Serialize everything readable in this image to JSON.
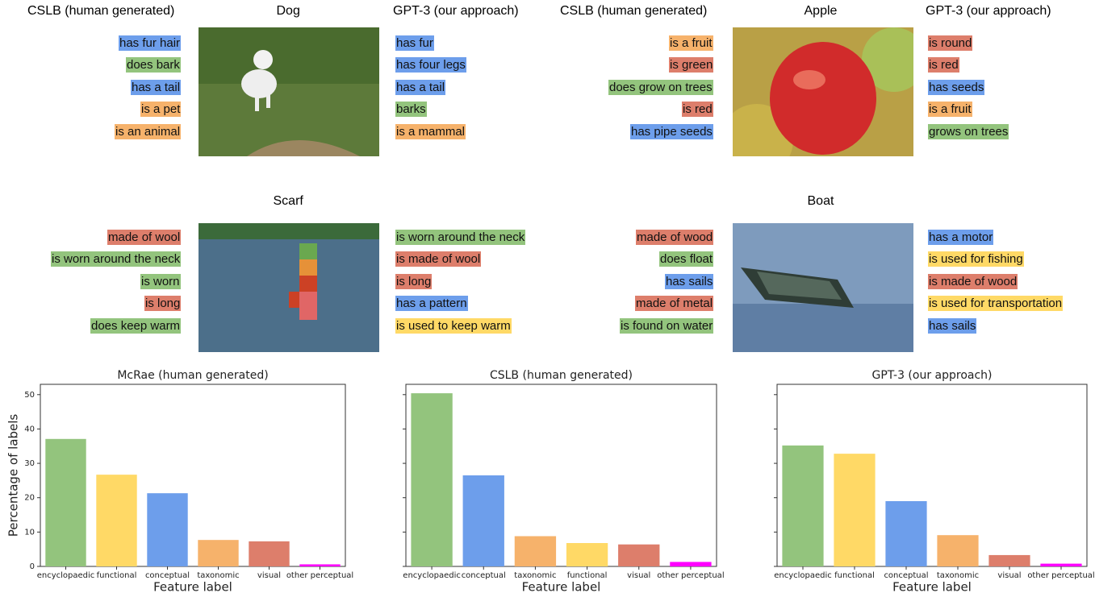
{
  "panels": [
    {
      "title": "Dog",
      "left_title": "CSLB (human generated)",
      "right_title": "GPT-3 (our approach)",
      "left": [
        {
          "text": "has fur hair",
          "color": "#6d9eeb"
        },
        {
          "text": "does bark",
          "color": "#93c47d"
        },
        {
          "text": "has a tail",
          "color": "#6d9eeb"
        },
        {
          "text": "is a pet",
          "color": "#f6b26b"
        },
        {
          "text": "is an animal",
          "color": "#f6b26b"
        }
      ],
      "right": [
        {
          "text": "has fur",
          "color": "#6d9eeb"
        },
        {
          "text": "has four legs",
          "color": "#6d9eeb"
        },
        {
          "text": "has a tail",
          "color": "#6d9eeb"
        },
        {
          "text": "barks",
          "color": "#93c47d"
        },
        {
          "text": "is a mammal",
          "color": "#f6b26b"
        }
      ]
    },
    {
      "title": "Apple",
      "left_title": "CSLB (human generated)",
      "right_title": "GPT-3 (our approach)",
      "left": [
        {
          "text": "is a fruit",
          "color": "#f6b26b"
        },
        {
          "text": "is green",
          "color": "#dd7e6b"
        },
        {
          "text": "does grow on trees",
          "color": "#93c47d"
        },
        {
          "text": "is red",
          "color": "#dd7e6b"
        },
        {
          "text": "has pipe seeds",
          "color": "#6d9eeb"
        }
      ],
      "right": [
        {
          "text": "is round",
          "color": "#dd7e6b"
        },
        {
          "text": "is red",
          "color": "#dd7e6b"
        },
        {
          "text": "has seeds",
          "color": "#6d9eeb"
        },
        {
          "text": "is a fruit",
          "color": "#f6b26b"
        },
        {
          "text": "grows on trees",
          "color": "#93c47d"
        }
      ]
    },
    {
      "title": "Scarf",
      "left": [
        {
          "text": "made of wool",
          "color": "#dd7e6b"
        },
        {
          "text": "is worn around the neck",
          "color": "#93c47d"
        },
        {
          "text": "is worn",
          "color": "#93c47d"
        },
        {
          "text": "is long",
          "color": "#dd7e6b"
        },
        {
          "text": "does keep warm",
          "color": "#93c47d"
        }
      ],
      "right": [
        {
          "text": "is worn around the neck",
          "color": "#93c47d"
        },
        {
          "text": "is made of wool",
          "color": "#dd7e6b"
        },
        {
          "text": "is long",
          "color": "#dd7e6b"
        },
        {
          "text": "has a pattern",
          "color": "#6d9eeb"
        },
        {
          "text": "is used to keep warm",
          "color": "#ffd966"
        }
      ]
    },
    {
      "title": "Boat",
      "left": [
        {
          "text": "made of wood",
          "color": "#dd7e6b"
        },
        {
          "text": "does float",
          "color": "#93c47d"
        },
        {
          "text": "has sails",
          "color": "#6d9eeb"
        },
        {
          "text": "made of metal",
          "color": "#dd7e6b"
        },
        {
          "text": "is found on water",
          "color": "#93c47d"
        }
      ],
      "right": [
        {
          "text": "has a motor",
          "color": "#6d9eeb"
        },
        {
          "text": "is used for fishing",
          "color": "#ffd966"
        },
        {
          "text": "is made of wood",
          "color": "#dd7e6b"
        },
        {
          "text": "is used for transportation",
          "color": "#ffd966"
        },
        {
          "text": "has sails",
          "color": "#6d9eeb"
        }
      ]
    }
  ],
  "chart_data": [
    {
      "type": "bar",
      "title": "McRae (human generated)",
      "xlabel": "Feature label",
      "ylabel": "Percentage of labels",
      "categories": [
        "encyclopaedic",
        "functional",
        "conceptual",
        "taxonomic",
        "visual",
        "other perceptual"
      ],
      "values": [
        37.1,
        26.7,
        21.3,
        7.7,
        7.3,
        0.6
      ],
      "colors": [
        "#93c47d",
        "#ffd966",
        "#6d9eeb",
        "#f6b26b",
        "#dd7e6b",
        "#ff00ff"
      ],
      "ylim": [
        0,
        53
      ],
      "yticks": [
        0,
        10,
        20,
        30,
        40,
        50
      ]
    },
    {
      "type": "bar",
      "title": "CSLB (human generated)",
      "xlabel": "Feature label",
      "categories": [
        "encyclopaedic",
        "conceptual",
        "taxonomic",
        "functional",
        "visual",
        "other perceptual"
      ],
      "values": [
        50.4,
        26.5,
        8.8,
        6.8,
        6.4,
        1.3
      ],
      "colors": [
        "#93c47d",
        "#6d9eeb",
        "#f6b26b",
        "#ffd966",
        "#dd7e6b",
        "#ff00ff"
      ],
      "ylim": [
        0,
        53
      ],
      "sharey": true
    },
    {
      "type": "bar",
      "title": "GPT-3 (our approach)",
      "xlabel": "Feature label",
      "categories": [
        "encyclopaedic",
        "functional",
        "conceptual",
        "taxonomic",
        "visual",
        "other perceptual"
      ],
      "values": [
        35.2,
        32.8,
        19.0,
        9.1,
        3.3,
        0.8
      ],
      "colors": [
        "#93c47d",
        "#ffd966",
        "#6d9eeb",
        "#f6b26b",
        "#dd7e6b",
        "#ff00ff"
      ],
      "ylim": [
        0,
        53
      ],
      "sharey": true
    }
  ]
}
